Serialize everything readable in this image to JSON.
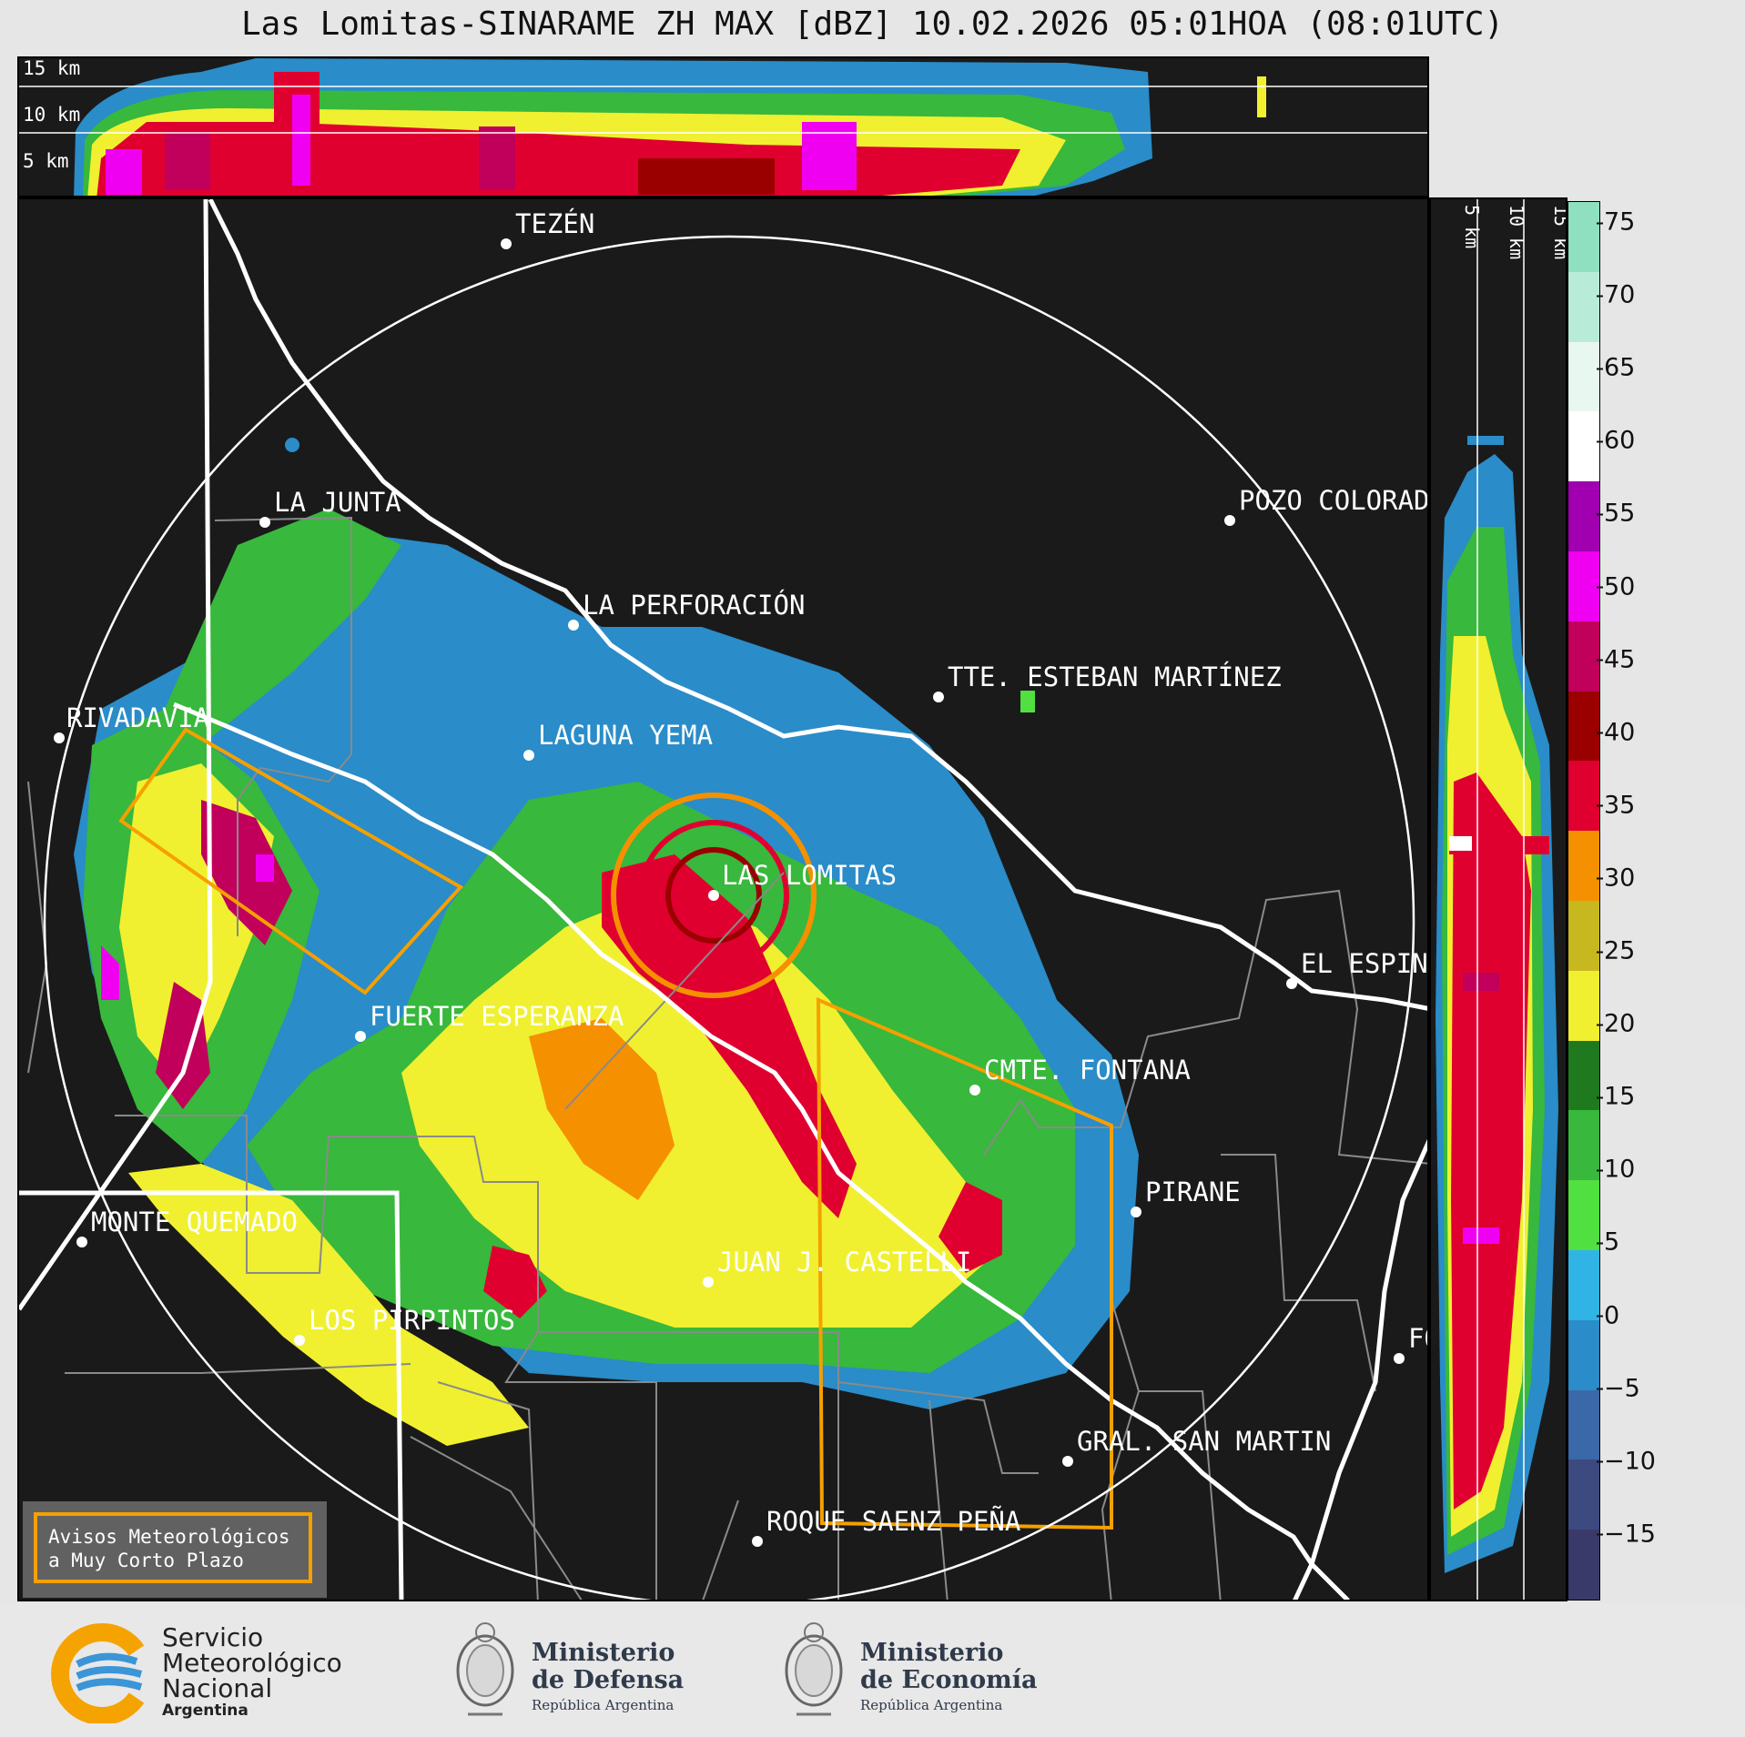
{
  "title": "Las Lomitas-SINARAME ZH MAX [dBZ] 10.02.2026 05:01HOA (08:01UTC)",
  "top_altitude_labels": [
    "15 km",
    "10 km",
    "5 km"
  ],
  "side_altitude_labels": [
    "5 km",
    "10 km",
    "15 km"
  ],
  "colorbar": {
    "ticks": [
      "75",
      "70",
      "65",
      "60",
      "55",
      "50",
      "45",
      "40",
      "35",
      "30",
      "25",
      "20",
      "15",
      "10",
      "5",
      "0",
      "−5",
      "−10",
      "−15"
    ],
    "colors": [
      "#8ee0c0",
      "#b9ecd8",
      "#e8f7f0",
      "#ffffff",
      "#a000b0",
      "#f000f0",
      "#c0005a",
      "#9a0000",
      "#e00030",
      "#f59000",
      "#c8b820",
      "#f0f030",
      "#1f7a1f",
      "#38b83c",
      "#50e040",
      "#30b4e6",
      "#2a8cc8",
      "#3a68a8",
      "#3c4a80",
      "#3a3a6a"
    ]
  },
  "places": {
    "tezen": "TEZÉN",
    "la_junta": "LA JUNTA",
    "pozo_colorado": "POZO COLORAD",
    "la_perforacion": "LA PERFORACIÓN",
    "tte_esteban_martinez": "TTE. ESTEBAN MARTÍNEZ",
    "rivadavia": "RIVADAVIA",
    "laguna_yema": "LAGUNA YEMA",
    "las_lomitas": "LAS LOMITAS",
    "el_espin": "EL ESPIN",
    "fuerte_esperanza": "FUERTE ESPERANZA",
    "cmte_fontana": "CMTE. FONTANA",
    "pirane": "PIRANE",
    "monte_quemado": "MONTE QUEMADO",
    "juan_j_castelli": "JUAN J. CASTELLI",
    "los_pirpintos": "LOS PIRPINTOS",
    "gral_san_martin": "GRAL. SAN MARTIN",
    "roque_saenz_pena": "ROQUE SAENZ PEÑA",
    "fo": "FO"
  },
  "warning_box": {
    "line1": "Avisos Meteorológicos",
    "line2": "a Muy Corto Plazo"
  },
  "footer": {
    "smn": {
      "line1": "Servicio",
      "line2": "Meteorológico",
      "line3": "Nacional",
      "line4": "Argentina"
    },
    "defensa": {
      "line1": "Ministerio",
      "line2": "de Defensa",
      "sub": "República Argentina"
    },
    "economia": {
      "line1": "Ministerio",
      "line2": "de Economía",
      "sub": "República Argentina"
    }
  }
}
